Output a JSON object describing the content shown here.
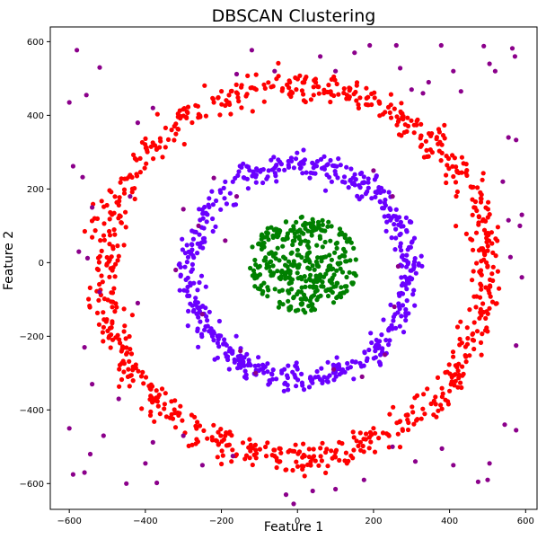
{
  "chart_data": {
    "type": "scatter",
    "title": "DBSCAN Clustering",
    "xlabel": "Feature 1",
    "ylabel": "Feature 2",
    "xlim": [
      -650,
      630
    ],
    "ylim": [
      -670,
      640
    ],
    "x_ticks": [
      -600,
      -400,
      -200,
      0,
      200,
      400,
      600
    ],
    "y_ticks": [
      -600,
      -400,
      -200,
      0,
      200,
      400,
      600
    ],
    "grid": false,
    "legend": "none",
    "clusters": [
      {
        "color": "#ff0000",
        "shape": "ring",
        "center": [
          -5,
          -25
        ],
        "radius": 505,
        "spread": 38,
        "count": 820
      },
      {
        "color": "#6a00ff",
        "shape": "ring",
        "center": [
          5,
          -25
        ],
        "radius": 290,
        "spread": 28,
        "count": 560
      },
      {
        "color": "#008000",
        "shape": "disk",
        "center": [
          15,
          -5
        ],
        "radius": 145,
        "spread": 0,
        "count": 360
      }
    ],
    "noise": {
      "color": "#8b008b",
      "points": [
        [
          -600,
          435
        ],
        [
          -580,
          577
        ],
        [
          -555,
          455
        ],
        [
          -520,
          530
        ],
        [
          -590,
          262
        ],
        [
          -565,
          232
        ],
        [
          -540,
          150
        ],
        [
          -575,
          30
        ],
        [
          -552,
          12
        ],
        [
          -520,
          -80
        ],
        [
          -560,
          -230
        ],
        [
          -540,
          -330
        ],
        [
          -510,
          -470
        ],
        [
          -590,
          -575
        ],
        [
          -560,
          -570
        ],
        [
          -545,
          -520
        ],
        [
          -470,
          -370
        ],
        [
          -450,
          -600
        ],
        [
          -400,
          -545
        ],
        [
          -380,
          -488
        ],
        [
          -370,
          -598
        ],
        [
          -300,
          -470
        ],
        [
          -250,
          -550
        ],
        [
          -170,
          -525
        ],
        [
          -160,
          512
        ],
        [
          -120,
          577
        ],
        [
          -60,
          520
        ],
        [
          60,
          560
        ],
        [
          100,
          520
        ],
        [
          150,
          570
        ],
        [
          190,
          590
        ],
        [
          260,
          590
        ],
        [
          270,
          528
        ],
        [
          300,
          470
        ],
        [
          330,
          460
        ],
        [
          345,
          490
        ],
        [
          378,
          590
        ],
        [
          410,
          520
        ],
        [
          430,
          465
        ],
        [
          490,
          588
        ],
        [
          505,
          540
        ],
        [
          520,
          520
        ],
        [
          555,
          340
        ],
        [
          565,
          582
        ],
        [
          572,
          560
        ],
        [
          575,
          333
        ],
        [
          540,
          220
        ],
        [
          555,
          115
        ],
        [
          585,
          100
        ],
        [
          590,
          130
        ],
        [
          560,
          15
        ],
        [
          590,
          -40
        ],
        [
          575,
          -225
        ],
        [
          575,
          -455
        ],
        [
          545,
          -440
        ],
        [
          505,
          -545
        ],
        [
          500,
          -590
        ],
        [
          475,
          -595
        ],
        [
          410,
          -550
        ],
        [
          380,
          -505
        ],
        [
          310,
          -540
        ],
        [
          250,
          -500
        ],
        [
          175,
          -590
        ],
        [
          100,
          -615
        ],
        [
          40,
          -620
        ],
        [
          -10,
          -655
        ],
        [
          -30,
          -630
        ],
        [
          -300,
          145
        ],
        [
          -320,
          -20
        ],
        [
          -260,
          100
        ],
        [
          -250,
          -140
        ],
        [
          -220,
          230
        ],
        [
          200,
          250
        ],
        [
          250,
          180
        ],
        [
          265,
          -10
        ],
        [
          255,
          -120
        ],
        [
          230,
          -250
        ],
        [
          170,
          -310
        ],
        [
          95,
          -290
        ],
        [
          -110,
          -300
        ],
        [
          -150,
          -240
        ],
        [
          -190,
          60
        ],
        [
          -160,
          180
        ],
        [
          -380,
          420
        ],
        [
          -420,
          380
        ],
        [
          -600,
          -450
        ],
        [
          -440,
          180
        ],
        [
          -420,
          -110
        ]
      ]
    }
  }
}
